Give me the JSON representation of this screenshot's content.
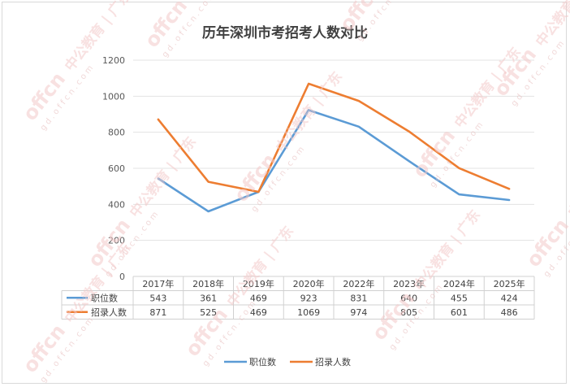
{
  "chart_data": {
    "type": "line",
    "title": "历年深圳市考招考人数对比",
    "categories": [
      "2017年",
      "2018年",
      "2019年",
      "2020年",
      "2022年",
      "2023年",
      "2024年",
      "2025年"
    ],
    "series": [
      {
        "name": "职位数",
        "color": "#5b9bd5",
        "values": [
          543,
          361,
          469,
          923,
          831,
          640,
          455,
          424
        ]
      },
      {
        "name": "招录人数",
        "color": "#ed7d31",
        "values": [
          871,
          525,
          469,
          1069,
          974,
          805,
          601,
          486
        ]
      }
    ],
    "ylim": [
      0,
      1200
    ],
    "yticks": [
      0,
      200,
      400,
      600,
      800,
      1000,
      1200
    ],
    "grid": true,
    "legend": "bottom",
    "data_table": true
  },
  "watermark": {
    "brand": "offcn",
    "text": "中公教育 | 广东",
    "url": "gd.offcn.com"
  }
}
